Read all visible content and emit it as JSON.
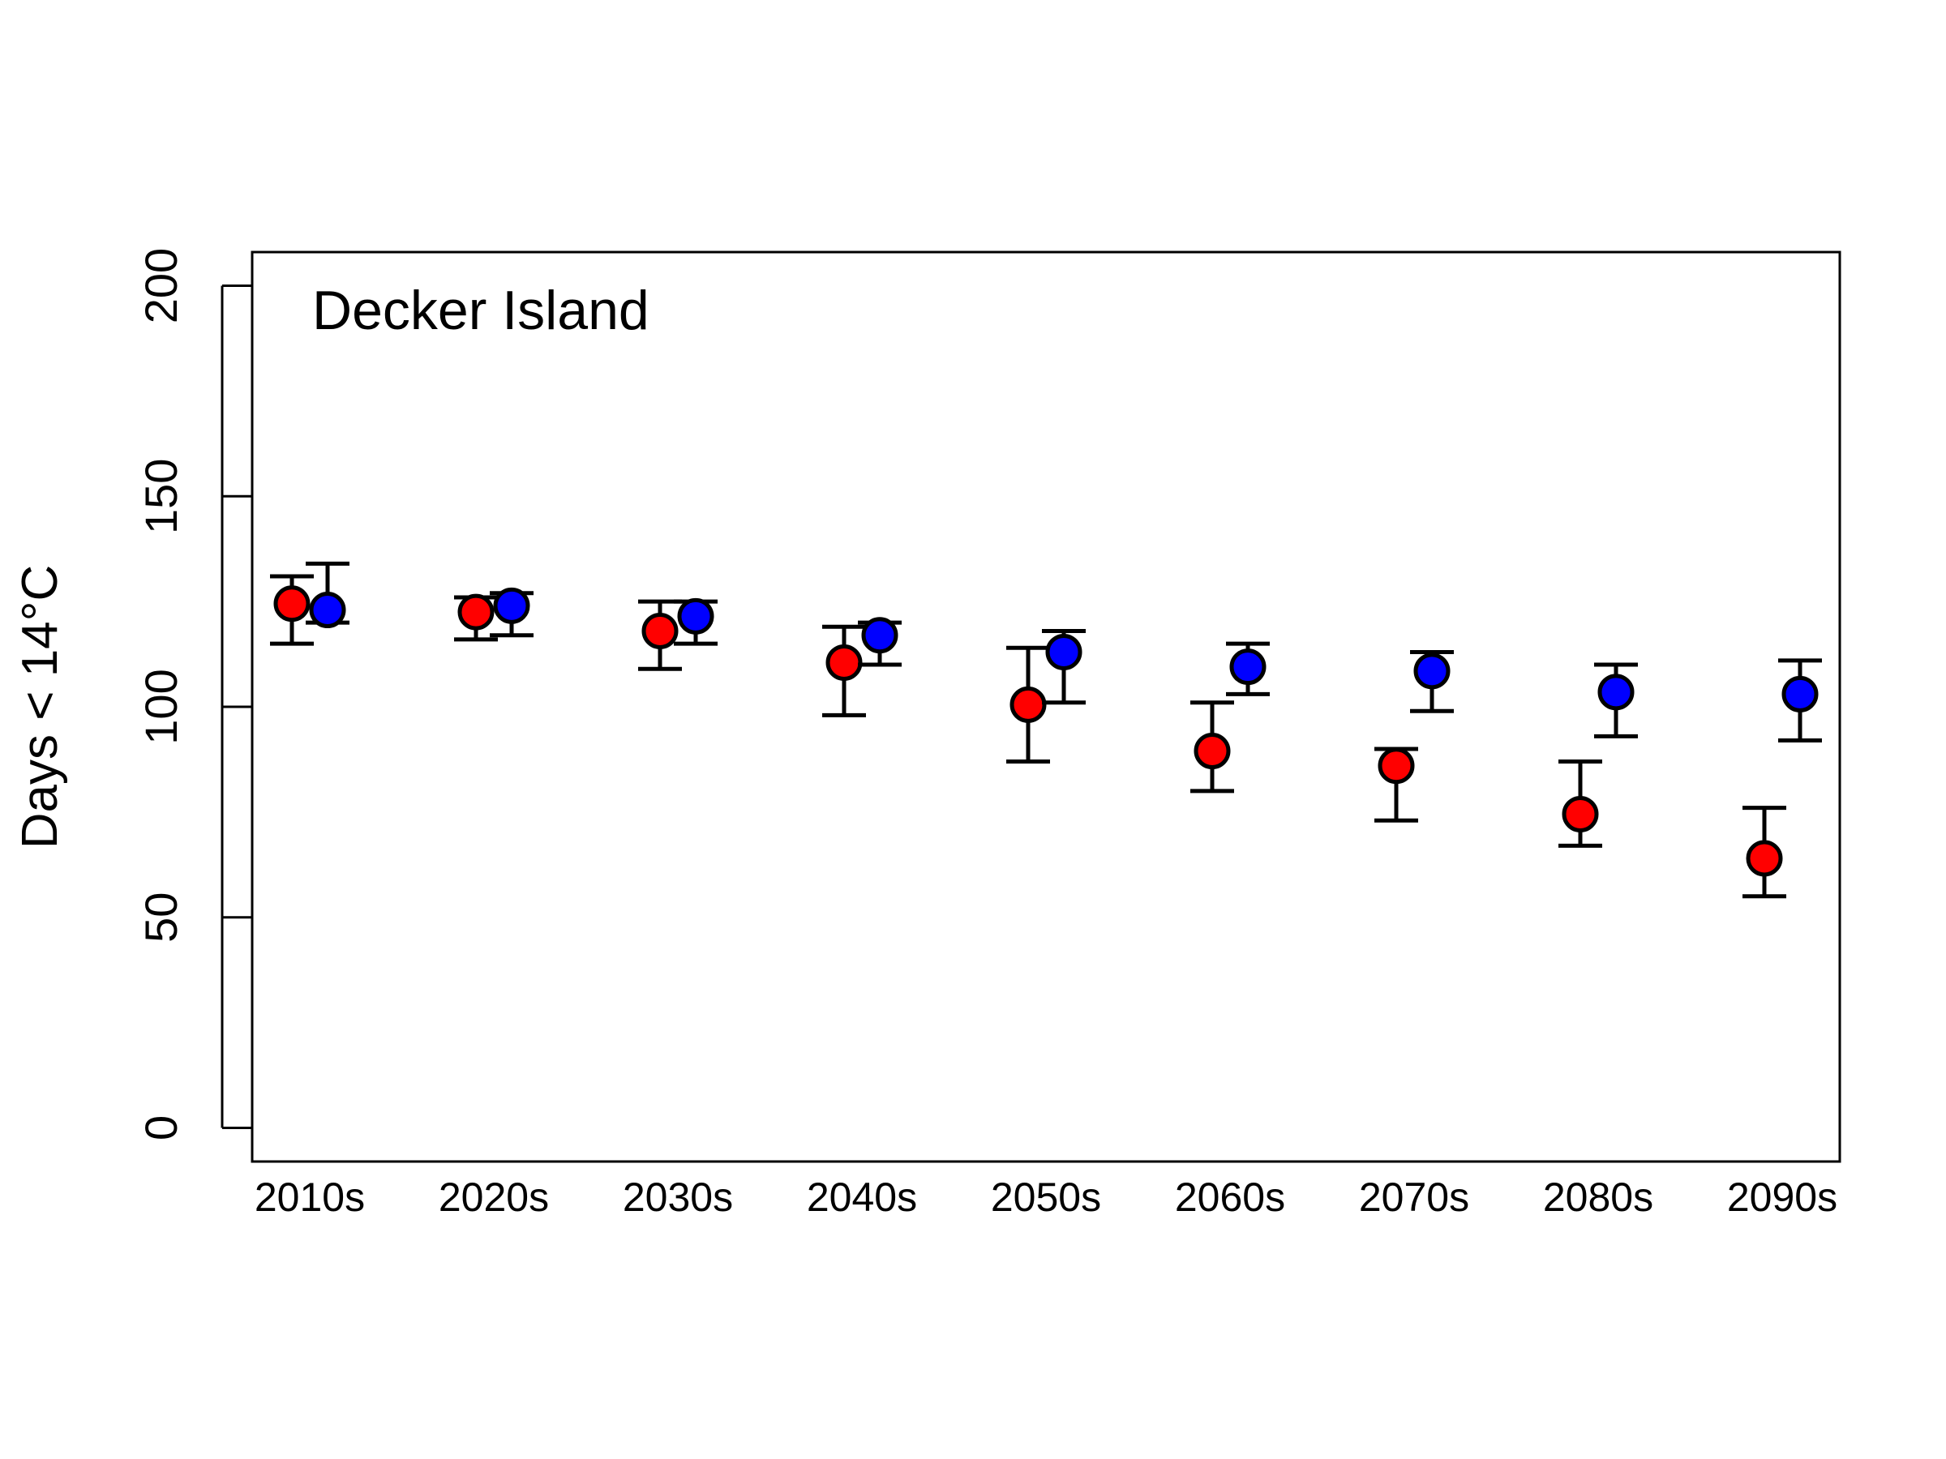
{
  "chart_data": {
    "type": "scatter",
    "title": "Decker Island",
    "ylabel": "Days < 14°C",
    "xlabel": "",
    "categories": [
      "2010s",
      "2020s",
      "2030s",
      "2040s",
      "2050s",
      "2060s",
      "2070s",
      "2080s",
      "2090s"
    ],
    "yticks": [
      "0",
      "50",
      "100",
      "150",
      "200"
    ],
    "ylim": [
      -8,
      208
    ],
    "grid": false,
    "legend": "none",
    "series": [
      {
        "color": "#ff0000",
        "values": [
          124.5,
          122.5,
          118,
          110.5,
          100.5,
          89.5,
          86,
          74.5,
          64
        ],
        "lower": [
          115,
          116,
          109,
          98,
          87,
          80,
          73,
          67,
          55
        ],
        "upper": [
          131,
          126,
          125,
          119,
          114,
          101,
          90,
          87,
          76
        ]
      },
      {
        "color": "#0000ff",
        "values": [
          123,
          124,
          121.5,
          117,
          113,
          109.5,
          108.5,
          103.5,
          103
        ],
        "lower": [
          120,
          117,
          115,
          110,
          101,
          103,
          99,
          93,
          92
        ],
        "upper": [
          134,
          127,
          125,
          120,
          118,
          115,
          113,
          110,
          111
        ]
      }
    ]
  }
}
